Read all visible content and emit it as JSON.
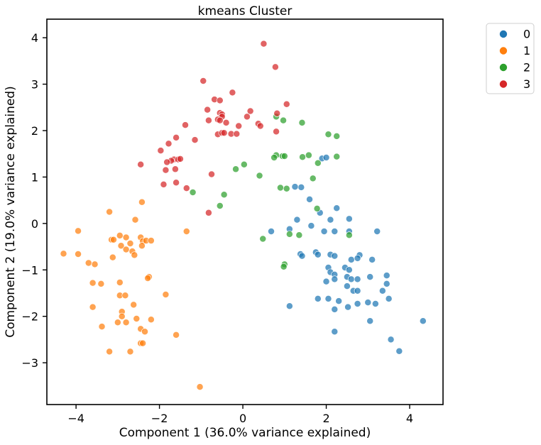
{
  "chart_data": {
    "type": "scatter",
    "title": "kmeans Cluster",
    "xlabel": "Component 1 (36.0% variance explained)",
    "ylabel": "Component 2 (19.0% variance explained)",
    "xlim": [
      -4.7,
      4.8
    ],
    "ylim": [
      -3.9,
      4.4
    ],
    "xticks": [
      -4,
      -2,
      0,
      2,
      4
    ],
    "yticks": [
      -3,
      -2,
      -1,
      0,
      1,
      2,
      3,
      4
    ],
    "xtick_labels": [
      "−4",
      "−2",
      "0",
      "2",
      "4"
    ],
    "ytick_labels": [
      "−3",
      "−2",
      "−1",
      "0",
      "1",
      "2",
      "3",
      "4"
    ],
    "grid": false,
    "legend": {
      "placement": "outside-top-right",
      "entries": [
        "0",
        "1",
        "2",
        "3"
      ]
    },
    "series": [
      {
        "name": "0",
        "color": "#1f77b4",
        "points": [
          [
            1.9,
            1.4
          ],
          [
            2.0,
            1.42
          ],
          [
            1.4,
            0.78
          ],
          [
            1.25,
            0.79
          ],
          [
            1.6,
            0.52
          ],
          [
            2.25,
            0.33
          ],
          [
            1.85,
            0.23
          ],
          [
            2.55,
            0.1
          ],
          [
            2.1,
            0.08
          ],
          [
            1.3,
            0.08
          ],
          [
            0.68,
            -0.17
          ],
          [
            1.12,
            -0.12
          ],
          [
            1.64,
            -0.05
          ],
          [
            1.95,
            -0.17
          ],
          [
            2.2,
            -0.17
          ],
          [
            2.55,
            -0.17
          ],
          [
            3.22,
            -0.17
          ],
          [
            1.38,
            -0.66
          ],
          [
            1.42,
            -0.7
          ],
          [
            1.75,
            -0.62
          ],
          [
            1.8,
            -0.67
          ],
          [
            2.1,
            -0.67
          ],
          [
            2.2,
            -0.7
          ],
          [
            2.6,
            -0.78
          ],
          [
            2.8,
            -0.68
          ],
          [
            2.75,
            -0.75
          ],
          [
            3.1,
            -0.78
          ],
          [
            2.05,
            -0.95
          ],
          [
            2.45,
            -0.95
          ],
          [
            2.55,
            -1.0
          ],
          [
            2.1,
            -1.05
          ],
          [
            2.2,
            -1.1
          ],
          [
            2.0,
            -1.25
          ],
          [
            2.2,
            -1.2
          ],
          [
            2.5,
            -1.15
          ],
          [
            2.6,
            -1.2
          ],
          [
            2.75,
            -1.2
          ],
          [
            3.05,
            -1.15
          ],
          [
            3.45,
            -1.12
          ],
          [
            2.65,
            -1.45
          ],
          [
            2.75,
            -1.45
          ],
          [
            2.5,
            -1.35
          ],
          [
            3.45,
            -1.3
          ],
          [
            3.35,
            -1.45
          ],
          [
            3.5,
            -1.62
          ],
          [
            1.8,
            -1.62
          ],
          [
            2.05,
            -1.62
          ],
          [
            2.3,
            -1.67
          ],
          [
            2.52,
            -1.8
          ],
          [
            2.75,
            -1.73
          ],
          [
            3.0,
            -1.7
          ],
          [
            3.18,
            -1.73
          ],
          [
            1.12,
            -1.78
          ],
          [
            2.2,
            -1.85
          ],
          [
            3.05,
            -2.1
          ],
          [
            2.2,
            -2.33
          ],
          [
            3.55,
            -2.5
          ],
          [
            3.75,
            -2.75
          ],
          [
            4.32,
            -2.1
          ]
        ]
      },
      {
        "name": "1",
        "color": "#ff7f0e",
        "points": [
          [
            -2.42,
            0.46
          ],
          [
            -3.2,
            0.25
          ],
          [
            -2.58,
            0.08
          ],
          [
            -3.95,
            -0.16
          ],
          [
            -1.35,
            -0.17
          ],
          [
            -3.15,
            -0.35
          ],
          [
            -2.95,
            -0.26
          ],
          [
            -2.8,
            -0.3
          ],
          [
            -2.7,
            -0.43
          ],
          [
            -2.45,
            -0.3
          ],
          [
            -2.4,
            -0.38
          ],
          [
            -2.32,
            -0.37
          ],
          [
            -2.2,
            -0.37
          ],
          [
            -3.1,
            -0.35
          ],
          [
            -2.92,
            -0.48
          ],
          [
            -2.42,
            -0.48
          ],
          [
            -2.8,
            -0.56
          ],
          [
            -2.65,
            -0.6
          ],
          [
            -2.6,
            -0.68
          ],
          [
            -3.12,
            -0.73
          ],
          [
            -4.3,
            -0.65
          ],
          [
            -3.95,
            -0.66
          ],
          [
            -3.7,
            -0.85
          ],
          [
            -3.55,
            -0.88
          ],
          [
            -2.25,
            -1.15
          ],
          [
            -2.28,
            -1.18
          ],
          [
            -2.95,
            -1.27
          ],
          [
            -3.6,
            -1.28
          ],
          [
            -3.4,
            -1.3
          ],
          [
            -1.85,
            -1.53
          ],
          [
            -2.95,
            -1.55
          ],
          [
            -2.82,
            -1.55
          ],
          [
            -2.62,
            -1.75
          ],
          [
            -3.6,
            -1.8
          ],
          [
            -2.9,
            -1.9
          ],
          [
            -2.9,
            -2.0
          ],
          [
            -3.0,
            -2.13
          ],
          [
            -2.8,
            -2.13
          ],
          [
            -2.55,
            -2.05
          ],
          [
            -2.2,
            -2.07
          ],
          [
            -3.38,
            -2.22
          ],
          [
            -2.45,
            -2.27
          ],
          [
            -2.35,
            -2.33
          ],
          [
            -1.6,
            -2.4
          ],
          [
            -2.45,
            -2.58
          ],
          [
            -2.4,
            -2.58
          ],
          [
            -3.2,
            -2.76
          ],
          [
            -2.7,
            -2.76
          ],
          [
            -1.03,
            -3.52
          ]
        ]
      },
      {
        "name": "2",
        "color": "#2ca02c",
        "points": [
          [
            0.8,
            2.3
          ],
          [
            0.97,
            2.22
          ],
          [
            1.42,
            2.17
          ],
          [
            2.05,
            1.92
          ],
          [
            2.25,
            1.88
          ],
          [
            0.8,
            1.47
          ],
          [
            0.75,
            1.42
          ],
          [
            0.95,
            1.45
          ],
          [
            1.0,
            1.45
          ],
          [
            1.43,
            1.43
          ],
          [
            1.58,
            1.47
          ],
          [
            2.25,
            1.44
          ],
          [
            1.8,
            1.3
          ],
          [
            0.03,
            1.27
          ],
          [
            -0.17,
            1.17
          ],
          [
            0.4,
            1.03
          ],
          [
            1.68,
            0.97
          ],
          [
            0.9,
            0.77
          ],
          [
            1.05,
            0.75
          ],
          [
            -1.2,
            0.67
          ],
          [
            -0.45,
            0.62
          ],
          [
            -0.55,
            0.38
          ],
          [
            1.78,
            0.32
          ],
          [
            1.12,
            -0.23
          ],
          [
            1.35,
            -0.25
          ],
          [
            2.55,
            -0.25
          ],
          [
            0.48,
            -0.33
          ],
          [
            1.0,
            -0.88
          ],
          [
            0.98,
            -0.93
          ]
        ]
      },
      {
        "name": "3",
        "color": "#d62728",
        "points": [
          [
            0.5,
            3.87
          ],
          [
            0.78,
            3.37
          ],
          [
            -0.95,
            3.07
          ],
          [
            -0.25,
            2.82
          ],
          [
            -0.68,
            2.67
          ],
          [
            -0.55,
            2.65
          ],
          [
            1.05,
            2.57
          ],
          [
            -0.85,
            2.45
          ],
          [
            0.18,
            2.42
          ],
          [
            -0.55,
            2.38
          ],
          [
            -0.5,
            2.35
          ],
          [
            -0.5,
            2.3
          ],
          [
            0.1,
            2.3
          ],
          [
            0.82,
            2.37
          ],
          [
            -0.82,
            2.22
          ],
          [
            -0.6,
            2.24
          ],
          [
            -0.55,
            2.22
          ],
          [
            -0.4,
            2.17
          ],
          [
            -1.38,
            2.12
          ],
          [
            0.37,
            2.15
          ],
          [
            0.42,
            2.1
          ],
          [
            -0.1,
            2.1
          ],
          [
            -0.6,
            1.92
          ],
          [
            -0.5,
            1.95
          ],
          [
            -0.45,
            1.95
          ],
          [
            -0.28,
            1.93
          ],
          [
            -0.15,
            1.93
          ],
          [
            0.8,
            1.98
          ],
          [
            -1.6,
            1.85
          ],
          [
            -1.15,
            1.8
          ],
          [
            -1.78,
            1.72
          ],
          [
            -1.97,
            1.57
          ],
          [
            -1.65,
            1.38
          ],
          [
            -1.55,
            1.38
          ],
          [
            -1.72,
            1.35
          ],
          [
            -1.5,
            1.39
          ],
          [
            -1.82,
            1.32
          ],
          [
            -2.45,
            1.27
          ],
          [
            -1.85,
            1.15
          ],
          [
            -1.62,
            1.17
          ],
          [
            -0.75,
            1.06
          ],
          [
            -1.6,
            0.88
          ],
          [
            -1.9,
            0.84
          ],
          [
            -1.35,
            0.76
          ],
          [
            -0.82,
            0.23
          ]
        ]
      }
    ]
  }
}
